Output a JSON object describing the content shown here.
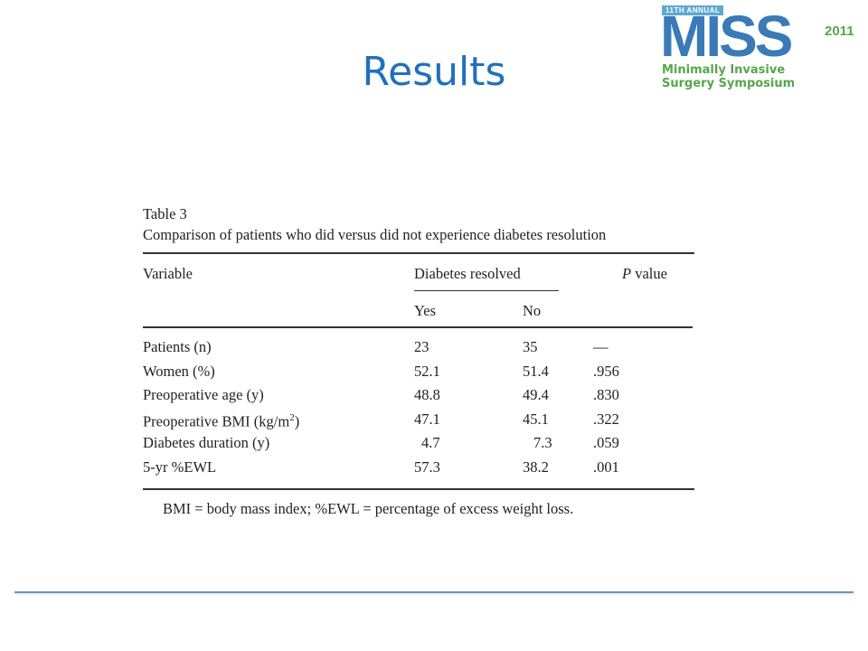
{
  "slide": {
    "title": "Results"
  },
  "logo": {
    "annual": "11TH ANNUAL",
    "miss": "MISS",
    "year": "2011",
    "subtitle_line1": "Minimally Invasive",
    "subtitle_line2": "Surgery Symposium"
  },
  "table": {
    "label": "Table 3",
    "caption": "Comparison of patients who did versus did not experience diabetes resolution",
    "headers": {
      "variable": "Variable",
      "group": "Diabetes resolved",
      "yes": "Yes",
      "no": "No",
      "p_italic": "P",
      "p_rest": " value"
    },
    "rows": [
      {
        "variable": "Patients (n)",
        "yes": "23",
        "no": "35",
        "p": "—"
      },
      {
        "variable": "Women (%)",
        "yes": "52.1",
        "no": "51.4",
        "p": ".956"
      },
      {
        "variable": "Preoperative age (y)",
        "yes": "48.8",
        "no": "49.4",
        "p": ".830"
      },
      {
        "variable": "Preoperative BMI (kg/m",
        "variable_sup": "2",
        "variable_end": ")",
        "yes": "47.1",
        "no": "45.1",
        "p": ".322"
      },
      {
        "variable": "Diabetes duration (y)",
        "yes": "4.7",
        "no": "7.3",
        "p": ".059"
      },
      {
        "variable": "5-yr %EWL",
        "yes": "57.3",
        "no": "38.2",
        "p": ".001"
      }
    ],
    "footnote": "BMI = body mass index; %EWL = percentage of excess weight loss."
  },
  "colors": {
    "title": "#1f70c0",
    "logo_blue": "#3a7ab6",
    "logo_green": "#56a64a",
    "rule": "#6c93c6"
  }
}
